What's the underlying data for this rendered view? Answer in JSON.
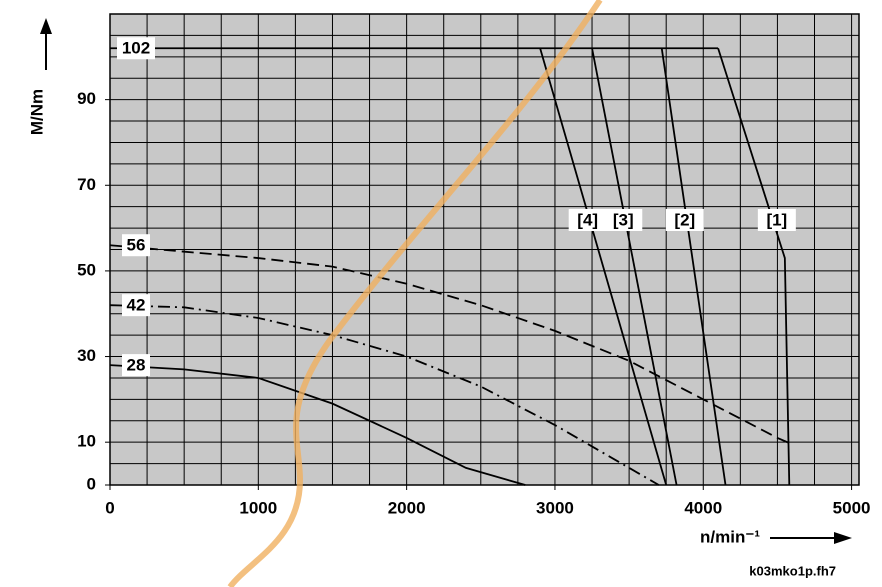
{
  "chart_data": {
    "type": "line",
    "x_label": "n/min⁻¹",
    "y_label": "M/Nm",
    "footnote": "k03mko1p.fh7",
    "xlim": [
      0,
      5050
    ],
    "ylim": [
      0,
      110
    ],
    "xticks": [
      0,
      1000,
      2000,
      3000,
      4000,
      5000
    ],
    "yticks": [
      0,
      10,
      30,
      50,
      70,
      90
    ],
    "minor_grid_step": {
      "x": 250,
      "y": 5
    },
    "grid": true,
    "series": [
      {
        "name": "102",
        "color": "#000000",
        "style": "solid",
        "x": [
          0,
          4100
        ],
        "values": [
          102,
          102
        ]
      },
      {
        "name": "56",
        "color": "#000000",
        "style": "dashed",
        "x": [
          0,
          1000,
          1500,
          2000,
          2500,
          3000,
          3500,
          4000,
          4500,
          4600
        ],
        "values": [
          56,
          53,
          51,
          47,
          42,
          36,
          29,
          20,
          11,
          9.5
        ]
      },
      {
        "name": "42",
        "color": "#000000",
        "style": "dashdot",
        "x": [
          0,
          500,
          1000,
          1500,
          2000,
          2500,
          3000,
          3400,
          3700
        ],
        "values": [
          42,
          41.5,
          39,
          35,
          30,
          23,
          14,
          6,
          0
        ]
      },
      {
        "name": "28",
        "color": "#000000",
        "style": "solid",
        "x": [
          0,
          500,
          1000,
          1500,
          2000,
          2400,
          2800
        ],
        "values": [
          28,
          27,
          25,
          19,
          11,
          4,
          0
        ]
      },
      {
        "name": "[1]",
        "color": "#000000",
        "style": "solid",
        "x": [
          4100,
          4550,
          4580
        ],
        "values": [
          102,
          53,
          0
        ]
      },
      {
        "name": "[2]",
        "color": "#000000",
        "style": "solid",
        "x": [
          3720,
          4150
        ],
        "values": [
          102,
          0
        ]
      },
      {
        "name": "[3]",
        "color": "#000000",
        "style": "solid",
        "x": [
          3250,
          3820
        ],
        "values": [
          102,
          0
        ]
      },
      {
        "name": "[4]",
        "color": "#000000",
        "style": "solid",
        "x": [
          2900,
          3750
        ],
        "values": [
          102,
          0
        ]
      }
    ]
  }
}
